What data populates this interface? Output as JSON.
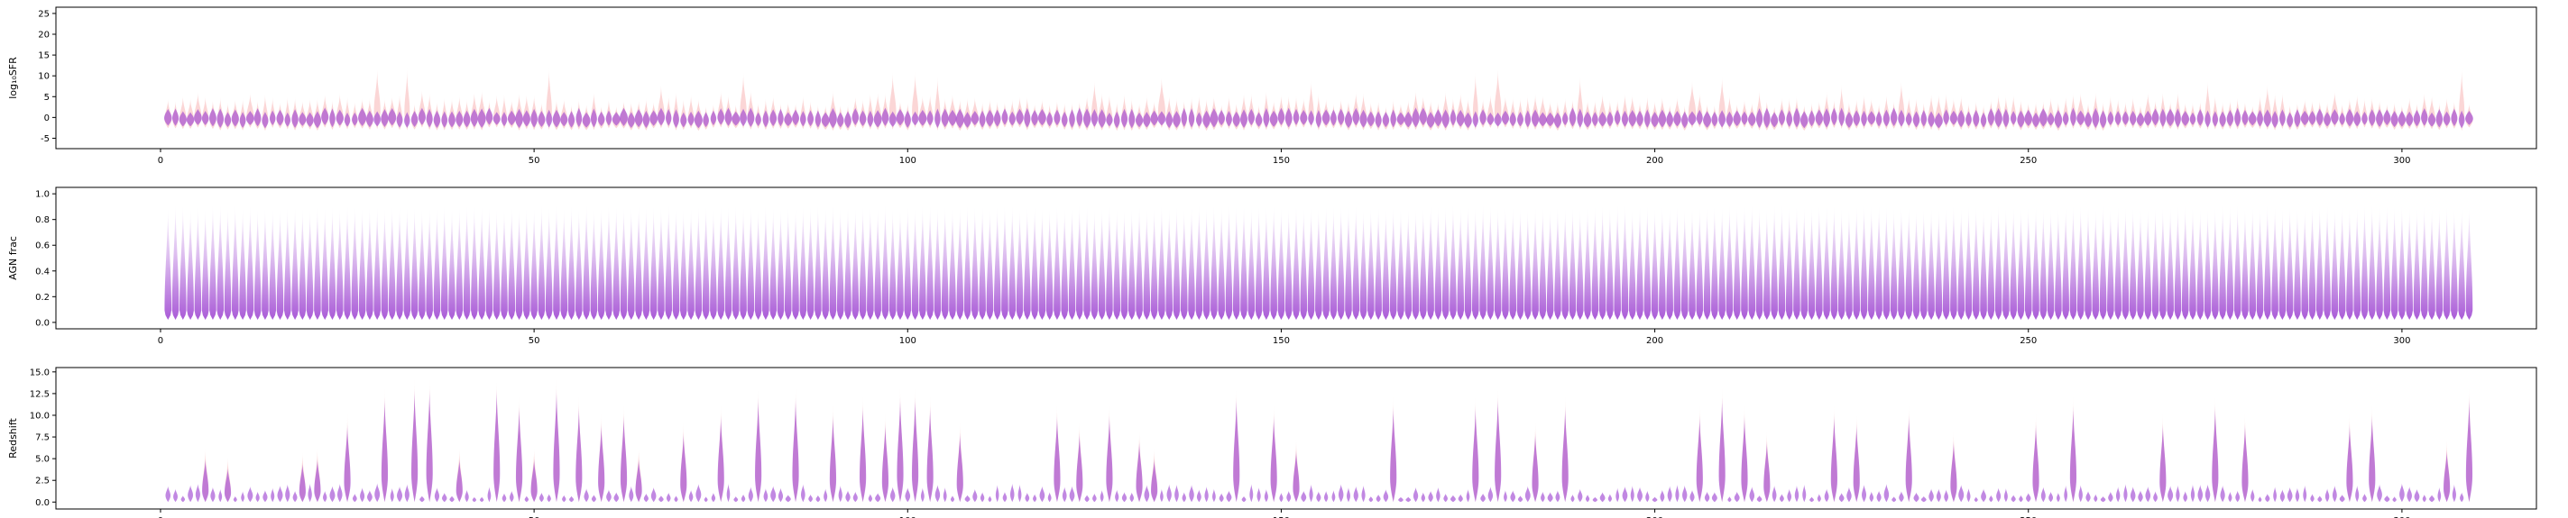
{
  "colors": {
    "violin_primary": "#9b3fd0",
    "violin_secondary": "#f26d6d",
    "axes_frame": "#000000"
  },
  "chart_data": [
    {
      "type": "violin",
      "ylabel": "log₁₀SFR",
      "xlim": [
        -14,
        318
      ],
      "ylim": [
        -7.5,
        26.5
      ],
      "xticks": [
        0,
        50,
        100,
        150,
        200,
        250,
        300
      ],
      "yticks": [
        -5,
        0,
        5,
        10,
        15,
        20,
        25
      ],
      "n_violins": 309,
      "x_first": 1,
      "median_level": 0,
      "typical_halfrange": 1.8,
      "peak_values": [
        {
          "x": 24,
          "y": 6
        },
        {
          "x": 29,
          "y": 12
        },
        {
          "x": 33,
          "y": 12
        },
        {
          "x": 52,
          "y": 12
        },
        {
          "x": 67,
          "y": 8
        },
        {
          "x": 78,
          "y": 11
        },
        {
          "x": 98,
          "y": 11
        },
        {
          "x": 101,
          "y": 11
        },
        {
          "x": 104,
          "y": 10
        },
        {
          "x": 125,
          "y": 9
        },
        {
          "x": 134,
          "y": 10
        },
        {
          "x": 154,
          "y": 9
        },
        {
          "x": 176,
          "y": 11
        },
        {
          "x": 179,
          "y": 12
        },
        {
          "x": 190,
          "y": 10
        },
        {
          "x": 205,
          "y": 9
        },
        {
          "x": 209,
          "y": 10
        },
        {
          "x": 225,
          "y": 8
        },
        {
          "x": 233,
          "y": 9
        },
        {
          "x": 274,
          "y": 9
        },
        {
          "x": 282,
          "y": 8
        },
        {
          "x": 308,
          "y": 12
        }
      ]
    },
    {
      "type": "violin",
      "ylabel": "AGN frac",
      "xlim": [
        -14,
        318
      ],
      "ylim": [
        -0.05,
        1.05
      ],
      "xticks": [
        0,
        50,
        100,
        150,
        200,
        250,
        300
      ],
      "yticks": [
        0.0,
        0.2,
        0.4,
        0.6,
        0.8,
        1.0
      ],
      "n_violins": 309,
      "x_first": 1,
      "range": [
        0.02,
        0.92
      ]
    },
    {
      "type": "violin",
      "ylabel": "Redshift",
      "xlim": [
        -14,
        318
      ],
      "ylim": [
        -0.8,
        15.5
      ],
      "xticks": [
        0,
        50,
        100,
        150,
        200,
        250,
        300
      ],
      "yticks": [
        0.0,
        2.5,
        5.0,
        7.5,
        10.0,
        12.5,
        15.0
      ],
      "n_violins": 309,
      "x_first": 1,
      "tall_peaks": [
        {
          "x": 6,
          "y": 5
        },
        {
          "x": 9,
          "y": 4
        },
        {
          "x": 19,
          "y": 4.5
        },
        {
          "x": 21,
          "y": 5
        },
        {
          "x": 25,
          "y": 9
        },
        {
          "x": 30,
          "y": 12
        },
        {
          "x": 34,
          "y": 13
        },
        {
          "x": 36,
          "y": 13
        },
        {
          "x": 40,
          "y": 5
        },
        {
          "x": 45,
          "y": 13
        },
        {
          "x": 48,
          "y": 11
        },
        {
          "x": 50,
          "y": 5
        },
        {
          "x": 53,
          "y": 13
        },
        {
          "x": 56,
          "y": 11
        },
        {
          "x": 59,
          "y": 9
        },
        {
          "x": 62,
          "y": 10
        },
        {
          "x": 64,
          "y": 5
        },
        {
          "x": 70,
          "y": 8
        },
        {
          "x": 75,
          "y": 10
        },
        {
          "x": 80,
          "y": 12
        },
        {
          "x": 85,
          "y": 12
        },
        {
          "x": 90,
          "y": 10
        },
        {
          "x": 94,
          "y": 11
        },
        {
          "x": 97,
          "y": 9
        },
        {
          "x": 99,
          "y": 12
        },
        {
          "x": 101,
          "y": 12
        },
        {
          "x": 103,
          "y": 11
        },
        {
          "x": 107,
          "y": 8
        },
        {
          "x": 120,
          "y": 10
        },
        {
          "x": 123,
          "y": 8
        },
        {
          "x": 127,
          "y": 10
        },
        {
          "x": 131,
          "y": 7
        },
        {
          "x": 133,
          "y": 5
        },
        {
          "x": 144,
          "y": 12
        },
        {
          "x": 149,
          "y": 10
        },
        {
          "x": 152,
          "y": 6
        },
        {
          "x": 165,
          "y": 11
        },
        {
          "x": 176,
          "y": 11
        },
        {
          "x": 179,
          "y": 12
        },
        {
          "x": 184,
          "y": 8
        },
        {
          "x": 188,
          "y": 11
        },
        {
          "x": 206,
          "y": 10
        },
        {
          "x": 209,
          "y": 12
        },
        {
          "x": 212,
          "y": 10
        },
        {
          "x": 215,
          "y": 7
        },
        {
          "x": 224,
          "y": 10
        },
        {
          "x": 227,
          "y": 9
        },
        {
          "x": 234,
          "y": 10
        },
        {
          "x": 240,
          "y": 7
        },
        {
          "x": 251,
          "y": 9
        },
        {
          "x": 256,
          "y": 11
        },
        {
          "x": 268,
          "y": 9
        },
        {
          "x": 275,
          "y": 11
        },
        {
          "x": 279,
          "y": 9
        },
        {
          "x": 293,
          "y": 9
        },
        {
          "x": 296,
          "y": 10
        },
        {
          "x": 306,
          "y": 6
        },
        {
          "x": 309,
          "y": 12
        }
      ]
    }
  ]
}
